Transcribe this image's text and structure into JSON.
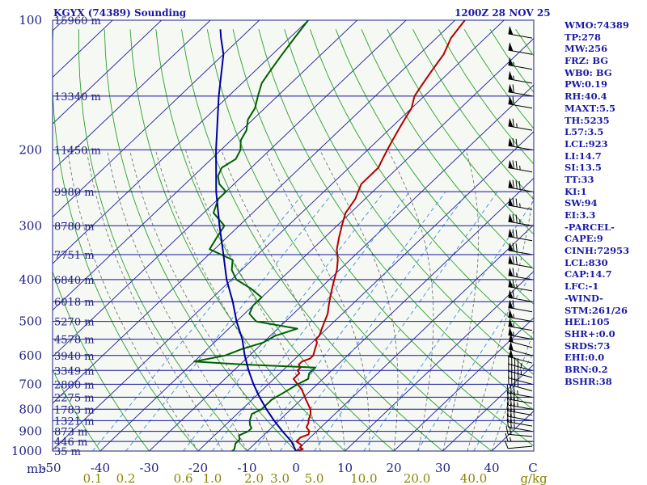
{
  "chart_data": {
    "type": "skew-t",
    "title_left": "KGYX (74389) Sounding",
    "title_right": "1200Z 28 NOV 25",
    "pressure_axis": {
      "unit_label": "mb",
      "ticks": [
        {
          "p": 100,
          "label": "100"
        },
        {
          "p": 200,
          "label": "200"
        },
        {
          "p": 300,
          "label": "300"
        },
        {
          "p": 400,
          "label": "400"
        },
        {
          "p": 500,
          "label": "500"
        },
        {
          "p": 600,
          "label": "600"
        },
        {
          "p": 700,
          "label": "700"
        },
        {
          "p": 800,
          "label": "800"
        },
        {
          "p": 900,
          "label": "900"
        },
        {
          "p": 1000,
          "label": "1000"
        }
      ]
    },
    "height_labels": [
      {
        "p": 100,
        "label": "15960 m"
      },
      {
        "p": 150,
        "label": "13340 m"
      },
      {
        "p": 200,
        "label": "11450 m"
      },
      {
        "p": 250,
        "label": "9980 m"
      },
      {
        "p": 300,
        "label": "8780 m"
      },
      {
        "p": 350,
        "label": "7751 m"
      },
      {
        "p": 400,
        "label": "6840 m"
      },
      {
        "p": 450,
        "label": "6018 m"
      },
      {
        "p": 500,
        "label": "5270 m"
      },
      {
        "p": 550,
        "label": "4578 m"
      },
      {
        "p": 600,
        "label": "3940 m"
      },
      {
        "p": 650,
        "label": "3349 m"
      },
      {
        "p": 700,
        "label": "2800 m"
      },
      {
        "p": 750,
        "label": "2275 m"
      },
      {
        "p": 800,
        "label": "1783 m"
      },
      {
        "p": 850,
        "label": "1321 m"
      },
      {
        "p": 900,
        "label": "873 m"
      },
      {
        "p": 950,
        "label": "446 m"
      },
      {
        "p": 1000,
        "label": "35 m"
      }
    ],
    "temperature_axis": {
      "unit": "C",
      "unit_label": "C",
      "ticks": [
        -50,
        -40,
        -30,
        -20,
        -10,
        0,
        10,
        20,
        30,
        40
      ],
      "tick_labels": [
        "-50",
        "-40",
        "-30",
        "-20",
        "-10",
        "0",
        "10",
        "20",
        "30",
        "40"
      ]
    },
    "mixing_ratio_axis": {
      "unit_label": "g/kg",
      "ticks": [
        {
          "w": 0.1,
          "label": "0.1"
        },
        {
          "w": 0.2,
          "label": "0.2"
        },
        {
          "w": 0.6,
          "label": "0.6"
        },
        {
          "w": 1.0,
          "label": "1.0"
        },
        {
          "w": 2.0,
          "label": "2.0"
        },
        {
          "w": 3.0,
          "label": "3.0"
        },
        {
          "w": 5.0,
          "label": "5.0"
        },
        {
          "w": 10.0,
          "label": "10.0"
        },
        {
          "w": 20.0,
          "label": "20.0"
        },
        {
          "w": 40.0,
          "label": "40.0"
        }
      ]
    },
    "series": [
      {
        "name": "temperature",
        "color": "#b00000",
        "points": [
          [
            1010,
            -1.5
          ],
          [
            1000,
            0
          ],
          [
            990,
            1
          ],
          [
            980,
            0
          ],
          [
            970,
            0
          ],
          [
            960,
            -1
          ],
          [
            950,
            -2
          ],
          [
            930,
            -2
          ],
          [
            915,
            -1
          ],
          [
            900,
            -1.5
          ],
          [
            880,
            -3
          ],
          [
            860,
            -3.5
          ],
          [
            850,
            -4
          ],
          [
            820,
            -5
          ],
          [
            800,
            -6
          ],
          [
            760,
            -9
          ],
          [
            720,
            -12
          ],
          [
            700,
            -14
          ],
          [
            680,
            -16
          ],
          [
            660,
            -16
          ],
          [
            650,
            -17
          ],
          [
            640,
            -17
          ],
          [
            630,
            -18
          ],
          [
            620,
            -18
          ],
          [
            610,
            -17
          ],
          [
            600,
            -17
          ],
          [
            580,
            -18
          ],
          [
            560,
            -19
          ],
          [
            550,
            -20
          ],
          [
            540,
            -20
          ],
          [
            520,
            -21
          ],
          [
            500,
            -22
          ],
          [
            480,
            -23
          ],
          [
            460,
            -24.5
          ],
          [
            440,
            -26
          ],
          [
            420,
            -27.5
          ],
          [
            400,
            -29
          ],
          [
            380,
            -30.5
          ],
          [
            360,
            -32.5
          ],
          [
            340,
            -35
          ],
          [
            320,
            -37
          ],
          [
            300,
            -39
          ],
          [
            290,
            -40
          ],
          [
            280,
            -41
          ],
          [
            270,
            -41.5
          ],
          [
            260,
            -42
          ],
          [
            250,
            -43
          ],
          [
            240,
            -44
          ],
          [
            230,
            -44
          ],
          [
            220,
            -44
          ],
          [
            210,
            -45
          ],
          [
            200,
            -46
          ],
          [
            190,
            -47
          ],
          [
            180,
            -48
          ],
          [
            170,
            -49
          ],
          [
            160,
            -50
          ],
          [
            150,
            -52
          ],
          [
            140,
            -53
          ],
          [
            130,
            -54
          ],
          [
            120,
            -55
          ],
          [
            110,
            -57
          ],
          [
            100,
            -58
          ]
        ]
      },
      {
        "name": "dewpoint",
        "color": "#006000",
        "points": [
          [
            1010,
            -14
          ],
          [
            1000,
            -13
          ],
          [
            990,
            -13
          ],
          [
            960,
            -14
          ],
          [
            940,
            -14
          ],
          [
            920,
            -15
          ],
          [
            900,
            -14
          ],
          [
            885,
            -14
          ],
          [
            870,
            -15
          ],
          [
            850,
            -16
          ],
          [
            820,
            -17
          ],
          [
            800,
            -16
          ],
          [
            760,
            -16
          ],
          [
            730,
            -15
          ],
          [
            700,
            -14
          ],
          [
            680,
            -13
          ],
          [
            660,
            -14
          ],
          [
            640,
            -14
          ],
          [
            630,
            -29
          ],
          [
            620,
            -40
          ],
          [
            600,
            -35
          ],
          [
            580,
            -33
          ],
          [
            560,
            -30
          ],
          [
            540,
            -29
          ],
          [
            520,
            -26
          ],
          [
            500,
            -36
          ],
          [
            480,
            -39
          ],
          [
            460,
            -40
          ],
          [
            440,
            -40
          ],
          [
            420,
            -44
          ],
          [
            400,
            -49
          ],
          [
            380,
            -52
          ],
          [
            360,
            -54
          ],
          [
            340,
            -61
          ],
          [
            320,
            -62
          ],
          [
            300,
            -63
          ],
          [
            280,
            -68
          ],
          [
            260,
            -70
          ],
          [
            250,
            -70
          ],
          [
            240,
            -73
          ],
          [
            230,
            -75
          ],
          [
            220,
            -76
          ],
          [
            210,
            -75
          ],
          [
            200,
            -76
          ],
          [
            190,
            -78
          ],
          [
            180,
            -79
          ],
          [
            170,
            -81
          ],
          [
            160,
            -82
          ],
          [
            150,
            -84
          ],
          [
            140,
            -86
          ],
          [
            130,
            -87
          ],
          [
            120,
            -88
          ],
          [
            110,
            -89
          ],
          [
            100,
            -90
          ]
        ]
      },
      {
        "name": "parcel",
        "color": "#0000a0",
        "points": [
          [
            1000,
            0
          ],
          [
            950,
            -3
          ],
          [
            900,
            -7
          ],
          [
            850,
            -11
          ],
          [
            800,
            -15
          ],
          [
            750,
            -19
          ],
          [
            700,
            -23
          ],
          [
            650,
            -27
          ],
          [
            600,
            -31
          ],
          [
            550,
            -35
          ],
          [
            500,
            -40
          ],
          [
            450,
            -45
          ],
          [
            400,
            -51
          ],
          [
            350,
            -57
          ],
          [
            300,
            -64
          ],
          [
            250,
            -72
          ],
          [
            200,
            -81
          ],
          [
            150,
            -92
          ],
          [
            120,
            -100
          ],
          [
            110,
            -104
          ],
          [
            105,
            -106
          ]
        ]
      }
    ],
    "wind_barbs": [
      {
        "p": 1000,
        "dir": 260,
        "spd": 5
      },
      {
        "p": 975,
        "dir": 265,
        "spd": 10
      },
      {
        "p": 950,
        "dir": 270,
        "spd": 15
      },
      {
        "p": 925,
        "dir": 275,
        "spd": 20
      },
      {
        "p": 900,
        "dir": 280,
        "spd": 25
      },
      {
        "p": 875,
        "dir": 280,
        "spd": 25
      },
      {
        "p": 850,
        "dir": 280,
        "spd": 30
      },
      {
        "p": 825,
        "dir": 280,
        "spd": 30
      },
      {
        "p": 800,
        "dir": 280,
        "spd": 35
      },
      {
        "p": 775,
        "dir": 280,
        "spd": 35
      },
      {
        "p": 750,
        "dir": 280,
        "spd": 35
      },
      {
        "p": 725,
        "dir": 285,
        "spd": 40
      },
      {
        "p": 700,
        "dir": 285,
        "spd": 40
      },
      {
        "p": 675,
        "dir": 285,
        "spd": 45
      },
      {
        "p": 650,
        "dir": 285,
        "spd": 45
      },
      {
        "p": 625,
        "dir": 285,
        "spd": 50
      },
      {
        "p": 600,
        "dir": 285,
        "spd": 50
      },
      {
        "p": 575,
        "dir": 285,
        "spd": 50
      },
      {
        "p": 550,
        "dir": 280,
        "spd": 55
      },
      {
        "p": 525,
        "dir": 280,
        "spd": 55
      },
      {
        "p": 500,
        "dir": 280,
        "spd": 55
      },
      {
        "p": 475,
        "dir": 280,
        "spd": 60
      },
      {
        "p": 450,
        "dir": 280,
        "spd": 60
      },
      {
        "p": 425,
        "dir": 280,
        "spd": 65
      },
      {
        "p": 400,
        "dir": 280,
        "spd": 65
      },
      {
        "p": 375,
        "dir": 280,
        "spd": 70
      },
      {
        "p": 350,
        "dir": 280,
        "spd": 70
      },
      {
        "p": 325,
        "dir": 280,
        "spd": 70
      },
      {
        "p": 300,
        "dir": 280,
        "spd": 75
      },
      {
        "p": 275,
        "dir": 280,
        "spd": 75
      },
      {
        "p": 250,
        "dir": 280,
        "spd": 80
      },
      {
        "p": 225,
        "dir": 280,
        "spd": 75
      },
      {
        "p": 200,
        "dir": 280,
        "spd": 70
      },
      {
        "p": 180,
        "dir": 280,
        "spd": 65
      },
      {
        "p": 160,
        "dir": 280,
        "spd": 60
      },
      {
        "p": 150,
        "dir": 280,
        "spd": 60
      },
      {
        "p": 140,
        "dir": 280,
        "spd": 55
      },
      {
        "p": 130,
        "dir": 280,
        "spd": 55
      },
      {
        "p": 120,
        "dir": 280,
        "spd": 50
      },
      {
        "p": 110,
        "dir": 280,
        "spd": 50
      },
      {
        "p": 100,
        "dir": 280,
        "spd": 45
      }
    ],
    "colors": {
      "frame": "#202080",
      "isobar": "#1414a0",
      "isotherm": "#1c1c9a",
      "dry_adiabat": "#2aa02a",
      "moist_adiabat": "#6a6a6a",
      "mixing_ratio": "#3a8fd6",
      "axis_text": "#202080",
      "mixing_text": "#8c8400",
      "params_text": "#1a1aa6"
    }
  },
  "params": [
    "WMO:74389",
    "TP:278",
    "MW:256",
    "FRZ: BG",
    "WB0: BG",
    "PW:0.19",
    "RH:40.4",
    "MAXT:5.5",
    "TH:5235",
    "L57:3.5",
    "LCL:923",
    "LI:14.7",
    "SI:13.5",
    "TT:33",
    "KI:1",
    "SW:94",
    "EI:3.3",
    "-PARCEL-",
    "CAPE:9",
    "CINH:72953",
    "LCL:830",
    "CAP:14.7",
    "LFC:-1",
    "-WIND-",
    "STM:261/26",
    "HEL:105",
    "SHR+:0.0",
    "SRDS:73",
    "EHI:0.0",
    "BRN:0.2",
    "BSHR:38"
  ]
}
